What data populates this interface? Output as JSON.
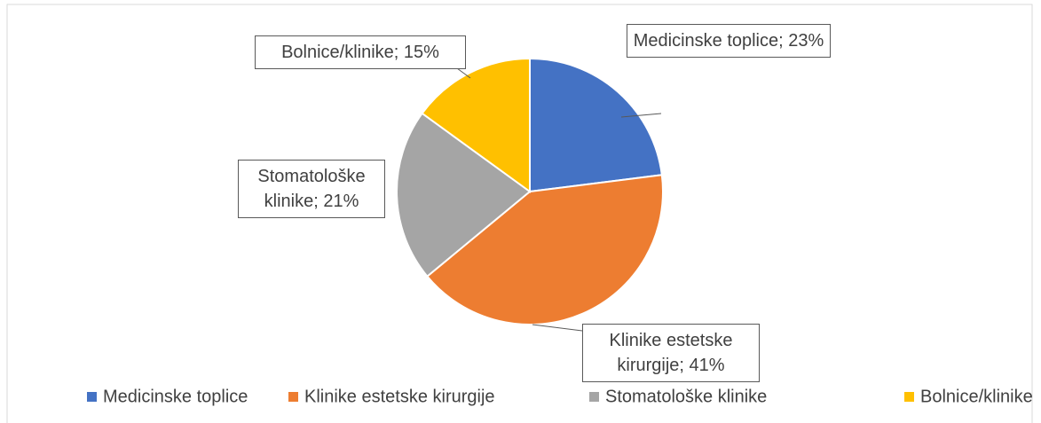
{
  "chart_data": {
    "type": "pie",
    "categories": [
      "Medicinske toplice",
      "Klinike estetske kirurgije",
      "Stomatološke klinike",
      "Bolnice/klinike"
    ],
    "values": [
      23,
      41,
      21,
      15
    ],
    "value_labels": [
      "Medicinske toplice; 23%",
      "Klinike estetske kirurgije; 41%",
      "Stomatološke klinike; 21%",
      "Bolnice/klinike; 15%"
    ],
    "colors": [
      "#4472c4",
      "#ed7d31",
      "#a5a5a5",
      "#ffc000"
    ],
    "legend": "bottom"
  }
}
